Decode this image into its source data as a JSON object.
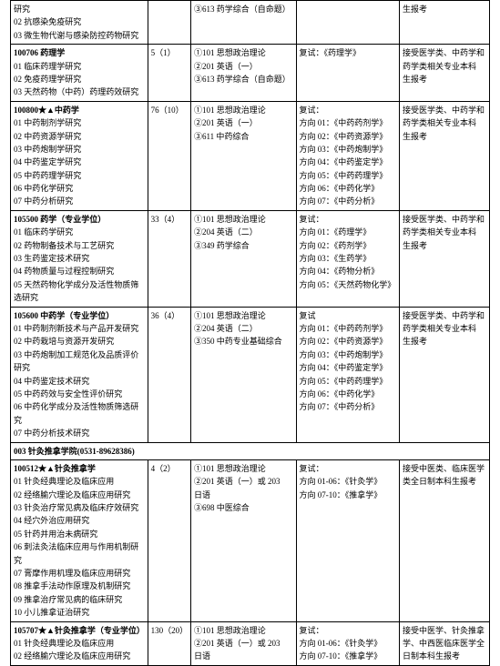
{
  "rows": [
    {
      "c1": [
        "研究",
        "02 抗感染免疫研究",
        "03 微生物代谢与感染防控药物研究"
      ],
      "c2": "",
      "c3": [
        "③613 药学综合（自命题）"
      ],
      "c4": [
        ""
      ],
      "c5": [
        "生报考"
      ]
    },
    {
      "c1": [
        "<b>100706 药理学</b>",
        "01 临床药理学研究",
        "02 免疫药理学研究",
        "03 天然药物（中药）药理药效研究"
      ],
      "c2": "5（1）",
      "c3": [
        "①101 思想政治理论",
        "②201 英语（一）",
        "③613 药学综合（自命题）"
      ],
      "c4": [
        "复试：《药理学》"
      ],
      "c5": [
        "接受医学类、中药学和",
        "药学类相关专业本科",
        "生报考"
      ]
    },
    {
      "c1": [
        "<b>100800★▲中药学</b>",
        "01 中药制剂学研究",
        "02 中药资源学研究",
        "03 中药炮制学研究",
        "04 中药鉴定学研究",
        "05 中药药理学研究",
        "06 中药化学研究",
        "07 中药分析研究"
      ],
      "c2": "76（10）",
      "c3": [
        "①101 思想政治理论",
        "②201 英语（一）",
        "③611 中药综合"
      ],
      "c4": [
        "复试：",
        "方向 01：《中药药剂学》",
        "方向 02：《中药资源学》",
        "方向 03：《中药炮制学》",
        "方向 04：《中药鉴定学》",
        "方向 05：《中药药理学》",
        "方向 06：《中药化学》",
        "方向 07：《中药分析》"
      ],
      "c5": [
        "接受医学类、中药学和",
        "药学类相关专业本科",
        "生报考"
      ]
    },
    {
      "c1": [
        "<b>105500 药学（专业学位）</b>",
        "01 临床药学研究",
        "02 药物制备技术与工艺研究",
        "03 生药鉴定技术研究",
        "04 药物质量与过程控制研究",
        "05 天然药物化学成分及活性物质筛选研究"
      ],
      "c2": "33（4）",
      "c3": [
        "①101 思想政治理论",
        "②204 英语（二）",
        "③349 药学综合"
      ],
      "c4": [
        "复试：",
        "方向 01：《药理学》",
        "方向 02：《药剂学》",
        "方向 03：《生药学》",
        "方向 04：《药物分析》",
        "方向 05：《天然药物化学》"
      ],
      "c5": [
        "接受医学类、中药学和",
        "药学类相关专业本科",
        "生报考"
      ]
    },
    {
      "c1": [
        "<b>105600 中药学（专业学位）</b>",
        "01 中药制剂新技术与产品开发研究",
        "02 中药栽培与资源开发研究",
        "03 中药炮制加工规范化及品质评价研究",
        "04 中药鉴定技术研究",
        "05 中药药效与安全性评价研究",
        "06 中药化学成分及活性物质筛选研究",
        "07 中药分析技术研究"
      ],
      "c2": "36（4）",
      "c3": [
        "①101 思想政治理论",
        "②204 英语（二）",
        "③350 中药专业基础综合"
      ],
      "c4": [
        "复试",
        "方向 01：《中药药剂学》",
        "方向 02：《中药资源学》",
        "方向 03：《中药炮制学》",
        "方向 04：《中药鉴定学》",
        "方向 05：《中药药理学》",
        "方向 06：《中药化学》",
        "方向 07：《中药分析》"
      ],
      "c5": [
        "接受医学类、中药学和",
        "药学类相关专业本科",
        "生报考"
      ]
    },
    {
      "header": "003 针灸推拿学院(0531-89628386)"
    },
    {
      "c1": [
        "<b>100512★▲针灸推拿学</b>",
        "01 针灸经典理论及临床应用",
        "02 经络腧穴理论及临床应用研究",
        "03 针灸治疗常见病及临床疗效研究",
        "04 经穴外治应用研究",
        "05 针药并用治未病研究",
        "06 刺法灸法临床应用与作用机制研究",
        "07 膏摩作用机理及临床应用研究",
        "08 推拿手法动作原理及机制研究",
        "09 推拿治疗常见病的临床研究",
        "10 小儿推拿证治研究"
      ],
      "c2": "4（2）",
      "c3": [
        "①101 思想政治理论",
        "②201 英语（一）或 203",
        "日语",
        "③698 中医综合"
      ],
      "c4": [
        "复试：",
        "方向 01-06：《针灸学》",
        "方向 07-10：《推拿学》"
      ],
      "c5": [
        "接受中医类、临床医学",
        "类全日制本科生报考"
      ]
    },
    {
      "c1": [
        "<b>105707★▲针灸推拿学（专业学位）</b>",
        "01 针灸经典理论及临床应用",
        "02 经络腧穴理论及临床应用研究"
      ],
      "c2": "130（20）",
      "c3": [
        "①101 思想政治理论",
        "②201 英语（一）或 203",
        "日语"
      ],
      "c4": [
        "复试：",
        "方向 01-06：《针灸学》",
        "方向 07-10：《推拿学》"
      ],
      "c5": [
        "接受中医学、针灸推拿",
        "学、中西医临床医学全",
        "日制本科生报考"
      ]
    }
  ]
}
